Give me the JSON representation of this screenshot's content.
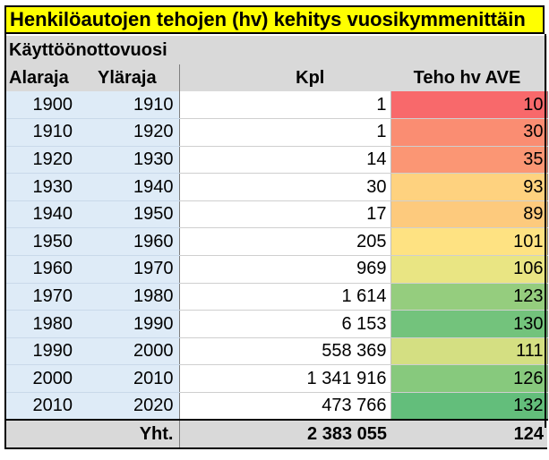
{
  "title": "Henkilöautojen tehojen (hv) kehitys vuosikymmenittäin",
  "header": {
    "group_label": "Käyttöönottovuosi",
    "col_lower": "Alaraja",
    "col_upper": "Yläraja",
    "col_count": "Kpl",
    "col_power": "Teho hv AVE"
  },
  "rows": [
    {
      "lower": "1900",
      "upper": "1910",
      "count": "1",
      "power": "10",
      "power_color": "#f8696b"
    },
    {
      "lower": "1910",
      "upper": "1920",
      "count": "1",
      "power": "30",
      "power_color": "#fa8d72"
    },
    {
      "lower": "1920",
      "upper": "1930",
      "count": "14",
      "power": "35",
      "power_color": "#fb9674"
    },
    {
      "lower": "1930",
      "upper": "1940",
      "count": "30",
      "power": "93",
      "power_color": "#fed27f"
    },
    {
      "lower": "1940",
      "upper": "1950",
      "count": "17",
      "power": "89",
      "power_color": "#fdca7d"
    },
    {
      "lower": "1950",
      "upper": "1960",
      "count": "205",
      "power": "101",
      "power_color": "#fee282"
    },
    {
      "lower": "1960",
      "upper": "1970",
      "count": "969",
      "power": "106",
      "power_color": "#e9e583"
    },
    {
      "lower": "1970",
      "upper": "1980",
      "count": "1 614",
      "power": "123",
      "power_color": "#95cd7e"
    },
    {
      "lower": "1980",
      "upper": "1990",
      "count": "6 153",
      "power": "130",
      "power_color": "#73c37c"
    },
    {
      "lower": "1990",
      "upper": "2000",
      "count": "558 369",
      "power": "111",
      "power_color": "#d4df82"
    },
    {
      "lower": "2000",
      "upper": "2010",
      "count": "1 341 916",
      "power": "126",
      "power_color": "#87c97d"
    },
    {
      "lower": "2010",
      "upper": "2020",
      "count": "473 766",
      "power": "132",
      "power_color": "#63be7b"
    }
  ],
  "total": {
    "label": "Yht.",
    "count": "2 383 055",
    "power": "124"
  }
}
